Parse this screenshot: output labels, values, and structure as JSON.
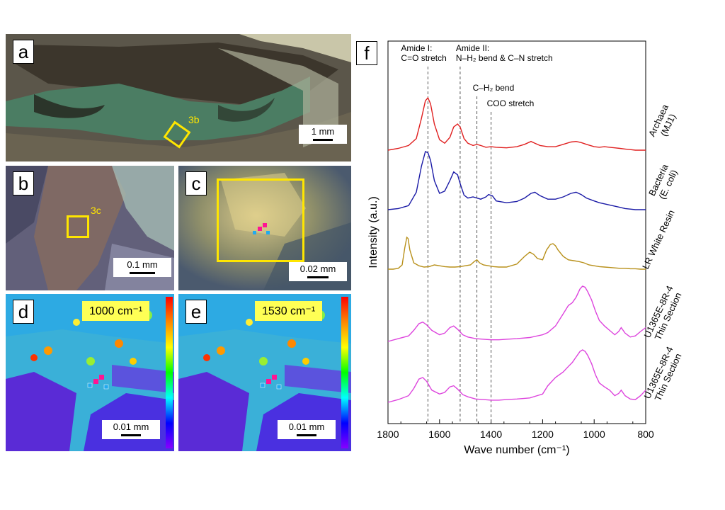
{
  "panels": {
    "a": {
      "label": "a",
      "scale": "1 mm",
      "box_label": "3b"
    },
    "b": {
      "label": "b",
      "scale": "0.1 mm",
      "box_label": "3c"
    },
    "c": {
      "label": "c",
      "scale": "0.02 mm"
    },
    "d": {
      "label": "d",
      "scale": "0.01 mm",
      "wavenumber": "1000 cm⁻¹"
    },
    "e": {
      "label": "e",
      "scale": "0.01 mm",
      "wavenumber": "1530 cm⁻¹"
    }
  },
  "chart_data": {
    "type": "line",
    "panel_label": "f",
    "xlabel": "Wave number (cm⁻¹)",
    "ylabel": "Intensity (a.u.)",
    "xlim": [
      1800,
      800
    ],
    "x_ticks": [
      1800,
      1600,
      1400,
      1200,
      1000,
      800
    ],
    "reference_lines": [
      {
        "x": 1645,
        "label_lines": [
          "Amide I:",
          "C=O stretch"
        ]
      },
      {
        "x": 1520,
        "label_lines": [
          "Amide II:",
          "N–H₂ bend & C–N stretch"
        ]
      },
      {
        "x": 1455,
        "label_lines": [
          "C–H₂ bend"
        ]
      },
      {
        "x": 1400,
        "label_lines": [
          "COO stretch"
        ]
      }
    ],
    "series": [
      {
        "name": "Archaea (MJ1)",
        "label_lines": [
          "Archaea",
          "(MJ1)"
        ],
        "color": "#e02020",
        "x": [
          1800,
          1760,
          1720,
          1690,
          1670,
          1655,
          1645,
          1635,
          1620,
          1600,
          1580,
          1560,
          1545,
          1530,
          1520,
          1505,
          1490,
          1470,
          1455,
          1440,
          1420,
          1400,
          1380,
          1340,
          1300,
          1270,
          1245,
          1230,
          1210,
          1180,
          1150,
          1120,
          1090,
          1070,
          1050,
          1030,
          1000,
          980,
          960,
          940,
          920,
          900,
          880,
          860,
          840,
          820,
          800
        ],
        "y": [
          0.0,
          0.03,
          0.08,
          0.2,
          0.55,
          0.85,
          0.9,
          0.8,
          0.45,
          0.18,
          0.12,
          0.22,
          0.4,
          0.45,
          0.4,
          0.2,
          0.12,
          0.08,
          0.1,
          0.08,
          0.05,
          0.06,
          0.05,
          0.04,
          0.06,
          0.1,
          0.15,
          0.12,
          0.08,
          0.06,
          0.06,
          0.1,
          0.14,
          0.15,
          0.13,
          0.1,
          0.06,
          0.05,
          0.06,
          0.05,
          0.04,
          0.03,
          0.02,
          0.01,
          0.0,
          0.0,
          0.0
        ]
      },
      {
        "name": "Bacteria (E. coli)",
        "label_lines": [
          "Bacteria",
          "(E. coli)"
        ],
        "color": "#1a1aa6",
        "x": [
          1800,
          1760,
          1720,
          1690,
          1670,
          1655,
          1645,
          1635,
          1620,
          1600,
          1580,
          1560,
          1545,
          1530,
          1520,
          1505,
          1490,
          1470,
          1455,
          1440,
          1420,
          1410,
          1395,
          1380,
          1340,
          1300,
          1270,
          1245,
          1230,
          1210,
          1180,
          1150,
          1120,
          1090,
          1070,
          1050,
          1030,
          1000,
          980,
          960,
          940,
          920,
          900,
          880,
          860,
          840,
          820,
          800
        ],
        "y": [
          0.0,
          0.02,
          0.07,
          0.3,
          0.75,
          1.0,
          0.98,
          0.85,
          0.5,
          0.28,
          0.32,
          0.5,
          0.65,
          0.6,
          0.45,
          0.25,
          0.2,
          0.22,
          0.2,
          0.18,
          0.22,
          0.26,
          0.24,
          0.15,
          0.12,
          0.14,
          0.2,
          0.28,
          0.3,
          0.24,
          0.18,
          0.18,
          0.22,
          0.28,
          0.3,
          0.26,
          0.2,
          0.15,
          0.12,
          0.1,
          0.08,
          0.06,
          0.04,
          0.02,
          0.01,
          0.0,
          0.0,
          0.0
        ]
      },
      {
        "name": "LR White Resin",
        "label_lines": [
          "LR White Resin"
        ],
        "color": "#b8901a",
        "x": [
          1800,
          1780,
          1760,
          1745,
          1735,
          1727,
          1722,
          1715,
          1700,
          1680,
          1660,
          1640,
          1620,
          1600,
          1580,
          1560,
          1540,
          1520,
          1500,
          1480,
          1465,
          1455,
          1445,
          1430,
          1410,
          1390,
          1370,
          1340,
          1300,
          1270,
          1250,
          1235,
          1220,
          1200,
          1185,
          1170,
          1160,
          1150,
          1140,
          1120,
          1100,
          1080,
          1060,
          1040,
          1020,
          1000,
          980,
          960,
          940,
          920,
          900,
          880,
          860,
          840,
          820,
          800
        ],
        "y": [
          0.0,
          0.0,
          0.02,
          0.1,
          0.5,
          0.75,
          0.72,
          0.45,
          0.15,
          0.08,
          0.05,
          0.06,
          0.1,
          0.08,
          0.06,
          0.05,
          0.05,
          0.06,
          0.08,
          0.1,
          0.18,
          0.22,
          0.15,
          0.1,
          0.08,
          0.06,
          0.05,
          0.05,
          0.12,
          0.3,
          0.4,
          0.35,
          0.25,
          0.22,
          0.45,
          0.58,
          0.6,
          0.55,
          0.45,
          0.3,
          0.22,
          0.2,
          0.18,
          0.15,
          0.1,
          0.08,
          0.06,
          0.05,
          0.04,
          0.03,
          0.02,
          0.02,
          0.01,
          0.01,
          0.0,
          0.0
        ]
      },
      {
        "name": "U1365E-8R-4 Thin Section",
        "label_lines": [
          "U1365E-8R-4",
          "Thin Section"
        ],
        "color": "#dd44dd",
        "x": [
          1800,
          1760,
          1720,
          1700,
          1680,
          1665,
          1650,
          1630,
          1600,
          1580,
          1560,
          1545,
          1530,
          1510,
          1490,
          1460,
          1430,
          1400,
          1370,
          1340,
          1300,
          1250,
          1200,
          1180,
          1150,
          1120,
          1100,
          1085,
          1070,
          1055,
          1045,
          1035,
          1025,
          1010,
          995,
          980,
          960,
          940,
          920,
          905,
          895,
          880,
          860,
          840,
          820,
          800
        ],
        "y": [
          0.0,
          0.05,
          0.1,
          0.2,
          0.32,
          0.35,
          0.3,
          0.2,
          0.12,
          0.15,
          0.25,
          0.28,
          0.22,
          0.12,
          0.08,
          0.05,
          0.04,
          0.03,
          0.03,
          0.04,
          0.05,
          0.07,
          0.12,
          0.16,
          0.28,
          0.5,
          0.65,
          0.7,
          0.8,
          0.95,
          1.0,
          0.98,
          0.9,
          0.75,
          0.55,
          0.38,
          0.28,
          0.2,
          0.12,
          0.18,
          0.25,
          0.15,
          0.08,
          0.1,
          0.18,
          0.25
        ]
      },
      {
        "name": "U1365E-8R-4 Thin Section",
        "label_lines": [
          "U1365E-8R-4",
          "Thin Section"
        ],
        "color": "#dd44dd",
        "x": [
          1800,
          1760,
          1720,
          1700,
          1680,
          1665,
          1650,
          1630,
          1600,
          1580,
          1560,
          1545,
          1530,
          1510,
          1490,
          1460,
          1430,
          1400,
          1370,
          1340,
          1300,
          1250,
          1200,
          1180,
          1150,
          1120,
          1100,
          1085,
          1070,
          1055,
          1045,
          1035,
          1025,
          1010,
          995,
          980,
          960,
          940,
          920,
          905,
          895,
          880,
          860,
          840,
          820,
          800
        ],
        "y": [
          0.0,
          0.05,
          0.12,
          0.25,
          0.42,
          0.45,
          0.38,
          0.22,
          0.15,
          0.18,
          0.28,
          0.3,
          0.24,
          0.14,
          0.1,
          0.06,
          0.05,
          0.04,
          0.04,
          0.05,
          0.06,
          0.08,
          0.15,
          0.3,
          0.45,
          0.55,
          0.65,
          0.72,
          0.82,
          0.92,
          0.95,
          0.92,
          0.85,
          0.7,
          0.5,
          0.35,
          0.28,
          0.22,
          0.12,
          0.16,
          0.22,
          0.12,
          0.06,
          0.05,
          0.12,
          0.22
        ]
      }
    ]
  }
}
